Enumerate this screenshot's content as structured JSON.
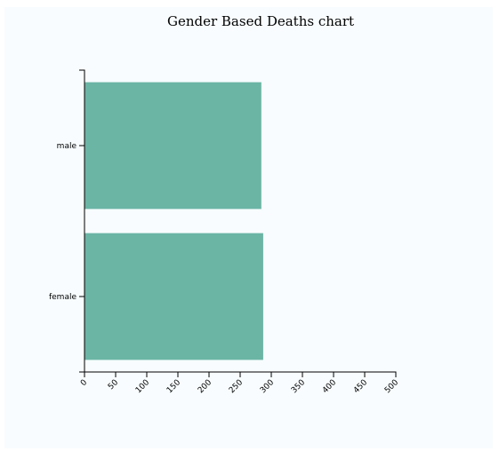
{
  "chart_data": {
    "type": "bar",
    "orientation": "horizontal",
    "title": "Gender Based Deaths chart",
    "categories": [
      "male",
      "female"
    ],
    "values": [
      284,
      287
    ],
    "xlim": [
      0,
      500
    ],
    "xticks": [
      "0",
      "50",
      "100",
      "150",
      "200",
      "250",
      "300",
      "350",
      "400",
      "450",
      "500"
    ],
    "bar_color": "#6bb5a5",
    "background_color": "#f8fcfe",
    "grid": false,
    "legend": "none"
  }
}
